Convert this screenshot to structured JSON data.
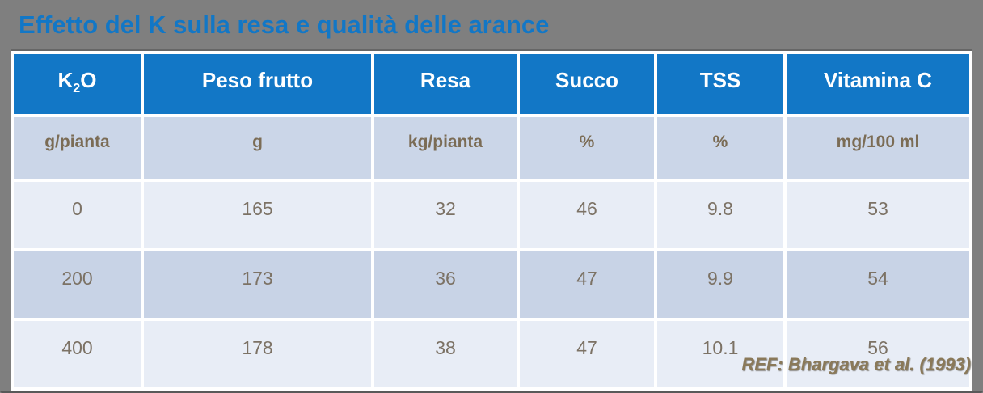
{
  "title": "Effetto del K sulla resa e qualità delle arance",
  "colors": {
    "background": "#7F7F7F",
    "title_text": "#1277C6",
    "header_bg": "#1277C6",
    "header_text": "#FFFFFF",
    "units_bg": "#CBD6E8",
    "units_text": "#7B6C55",
    "row_light_bg": "#E8EDF6",
    "row_dark_bg": "#C8D3E6",
    "cell_text": "#7C7265",
    "ref_text": "#8A7959"
  },
  "table": {
    "k2o": {
      "pre": "K",
      "sub": "2",
      "post": "O"
    },
    "headers": [
      "K2O",
      "Peso frutto",
      "Resa",
      "Succo",
      "TSS",
      "Vitamina C"
    ],
    "units": [
      "g/pianta",
      "g",
      "kg/pianta",
      "%",
      "%",
      "mg/100 ml"
    ],
    "rows": [
      [
        "0",
        "165",
        "32",
        "46",
        "9.8",
        "53"
      ],
      [
        "200",
        "173",
        "36",
        "47",
        "9.9",
        "54"
      ],
      [
        "400",
        "178",
        "38",
        "47",
        "10.1",
        "56"
      ]
    ]
  },
  "footer": {
    "ref": "REF: Bhargava et al. (1993)"
  },
  "chart_data": {
    "type": "table",
    "title": "Effetto del K sulla resa e qualità delle arance",
    "columns": [
      "K2O (g/pianta)",
      "Peso frutto (g)",
      "Resa (kg/pianta)",
      "Succo (%)",
      "TSS (%)",
      "Vitamina C (mg/100 ml)"
    ],
    "rows": [
      [
        0,
        165,
        32,
        46,
        9.8,
        53
      ],
      [
        200,
        173,
        36,
        47,
        9.9,
        54
      ],
      [
        400,
        178,
        38,
        47,
        10.1,
        56
      ]
    ],
    "source": "REF: Bhargava et al. (1993)"
  }
}
